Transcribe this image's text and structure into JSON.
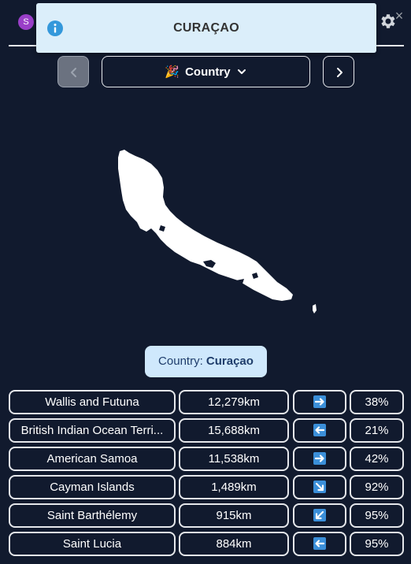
{
  "header": {
    "avatar_initial": "S",
    "settings_icon": "gear-icon"
  },
  "toast": {
    "title": "CURAÇAO",
    "close_label": "×",
    "icon": "info-icon"
  },
  "controls": {
    "mode_emoji": "🎉",
    "mode_label": "Country",
    "prev_icon": "chevron-left-icon",
    "next_icon": "chevron-right-icon",
    "dropdown_icon": "chevron-down-icon"
  },
  "answer": {
    "prefix": "Country: ",
    "name": "Curaçao"
  },
  "colors": {
    "background": "#111a2e",
    "arrow_tile": "#3b8fd9",
    "answer_bg": "#cfe8fc"
  },
  "guesses": [
    {
      "name": "Wallis and Futuna",
      "distance": "12,279km",
      "direction": "east",
      "percent": "38%"
    },
    {
      "name": "British Indian Ocean Terri...",
      "distance": "15,688km",
      "direction": "west",
      "percent": "21%"
    },
    {
      "name": "American Samoa",
      "distance": "11,538km",
      "direction": "east",
      "percent": "42%"
    },
    {
      "name": "Cayman Islands",
      "distance": "1,489km",
      "direction": "south-east",
      "percent": "92%"
    },
    {
      "name": "Saint Barthélemy",
      "distance": "915km",
      "direction": "south-west",
      "percent": "95%"
    },
    {
      "name": "Saint Lucia",
      "distance": "884km",
      "direction": "west",
      "percent": "95%"
    }
  ]
}
